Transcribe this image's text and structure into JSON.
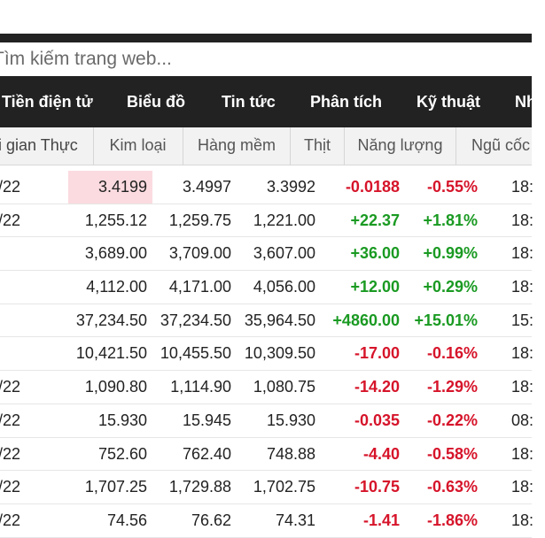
{
  "search": {
    "placeholder": "Tìm kiếm trang web..."
  },
  "nav": {
    "items": [
      {
        "label": "Tiền điện tử"
      },
      {
        "label": "Biểu đồ"
      },
      {
        "label": "Tin tức"
      },
      {
        "label": "Phân tích"
      },
      {
        "label": "Kỹ thuật"
      },
      {
        "label": "Nh"
      }
    ]
  },
  "subtabs": {
    "items": [
      {
        "label": "i gian Thực"
      },
      {
        "label": "Kim loại"
      },
      {
        "label": "Hàng mềm"
      },
      {
        "label": "Thịt"
      },
      {
        "label": "Năng lượng"
      },
      {
        "label": "Ngũ cốc"
      }
    ]
  },
  "colors": {
    "negative": "#d6142a",
    "positive": "#1a9a22",
    "highlight": "#fbdbe0",
    "nav_bg": "#222222"
  },
  "table": {
    "rows": [
      {
        "date": "/22",
        "last": "3.4199",
        "open": "3.4997",
        "low": "3.3992",
        "change": "-0.0188",
        "pct": "-0.55%",
        "time": "18:",
        "dir": "neg",
        "highlight": true
      },
      {
        "date": "/22",
        "last": "1,255.12",
        "open": "1,259.75",
        "low": "1,221.00",
        "change": "+22.37",
        "pct": "+1.81%",
        "time": "18:",
        "dir": "pos"
      },
      {
        "date": "",
        "last": "3,689.00",
        "open": "3,709.00",
        "low": "3,607.00",
        "change": "+36.00",
        "pct": "+0.99%",
        "time": "18:",
        "dir": "pos"
      },
      {
        "date": "",
        "last": "4,112.00",
        "open": "4,171.00",
        "low": "4,056.00",
        "change": "+12.00",
        "pct": "+0.29%",
        "time": "18:",
        "dir": "pos"
      },
      {
        "date": "",
        "last": "37,234.50",
        "open": "37,234.50",
        "low": "35,964.50",
        "change": "+4860.00",
        "pct": "+15.01%",
        "time": "15:",
        "dir": "pos"
      },
      {
        "date": "",
        "last": "10,421.50",
        "open": "10,455.50",
        "low": "10,309.50",
        "change": "-17.00",
        "pct": "-0.16%",
        "time": "18:",
        "dir": "neg"
      },
      {
        "date": "/22",
        "last": "1,090.80",
        "open": "1,114.90",
        "low": "1,080.75",
        "change": "-14.20",
        "pct": "-1.29%",
        "time": "18:",
        "dir": "neg"
      },
      {
        "date": "/22",
        "last": "15.930",
        "open": "15.945",
        "low": "15.930",
        "change": "-0.035",
        "pct": "-0.22%",
        "time": "08:",
        "dir": "neg"
      },
      {
        "date": "/22",
        "last": "752.60",
        "open": "762.40",
        "low": "748.88",
        "change": "-4.40",
        "pct": "-0.58%",
        "time": "18:",
        "dir": "neg"
      },
      {
        "date": "/22",
        "last": "1,707.25",
        "open": "1,729.88",
        "low": "1,702.75",
        "change": "-10.75",
        "pct": "-0.63%",
        "time": "18:",
        "dir": "neg"
      },
      {
        "date": "/22",
        "last": "74.56",
        "open": "76.62",
        "low": "74.31",
        "change": "-1.41",
        "pct": "-1.86%",
        "time": "18:",
        "dir": "neg"
      }
    ]
  }
}
